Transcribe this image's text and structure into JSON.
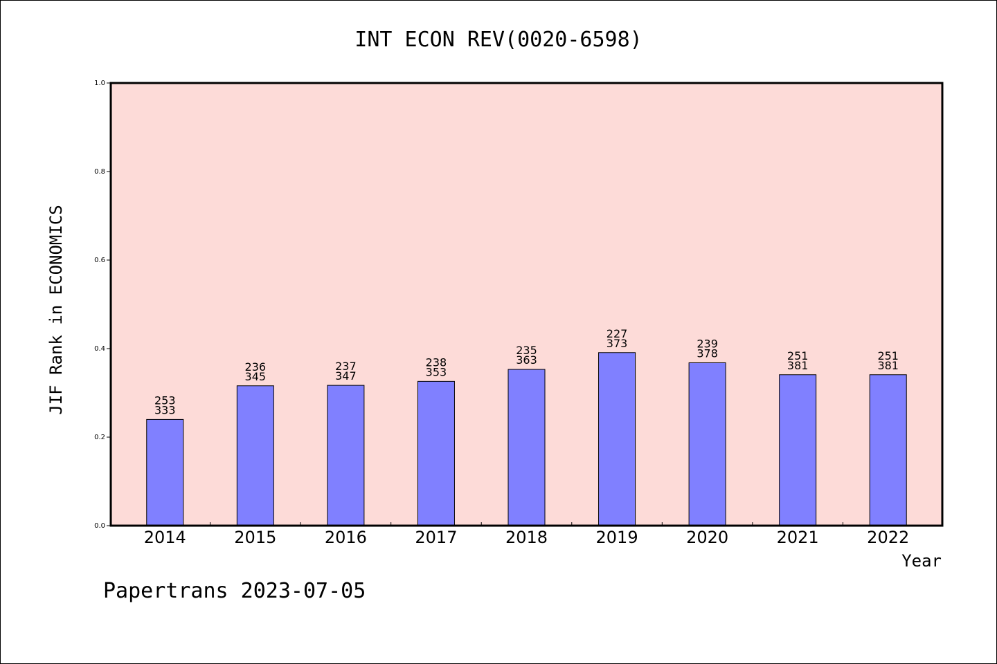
{
  "chart_data": {
    "type": "bar",
    "title": "INT ECON REV(0020-6598)",
    "xlabel": "Year",
    "ylabel": "JIF Rank in ECONOMICS",
    "ylim": [
      0.0,
      1.0
    ],
    "yticks": [
      "0.0",
      "0.2",
      "0.4",
      "0.6",
      "0.8",
      "1.0"
    ],
    "categories": [
      "2014",
      "2015",
      "2016",
      "2017",
      "2018",
      "2019",
      "2020",
      "2021",
      "2022"
    ],
    "values": [
      0.24,
      0.316,
      0.317,
      0.326,
      0.353,
      0.391,
      0.368,
      0.341,
      0.341
    ],
    "rank_labels": [
      "253",
      "236",
      "237",
      "238",
      "235",
      "227",
      "239",
      "251",
      "251"
    ],
    "total_labels": [
      "333",
      "345",
      "347",
      "353",
      "363",
      "373",
      "378",
      "381",
      "381"
    ],
    "grid": false,
    "legend": "none",
    "colors": {
      "plot_background": "#fddbd8",
      "bar_fill": "#8080ff",
      "bar_edge": "#000000"
    }
  },
  "footer": "Papertrans 2023-07-05"
}
